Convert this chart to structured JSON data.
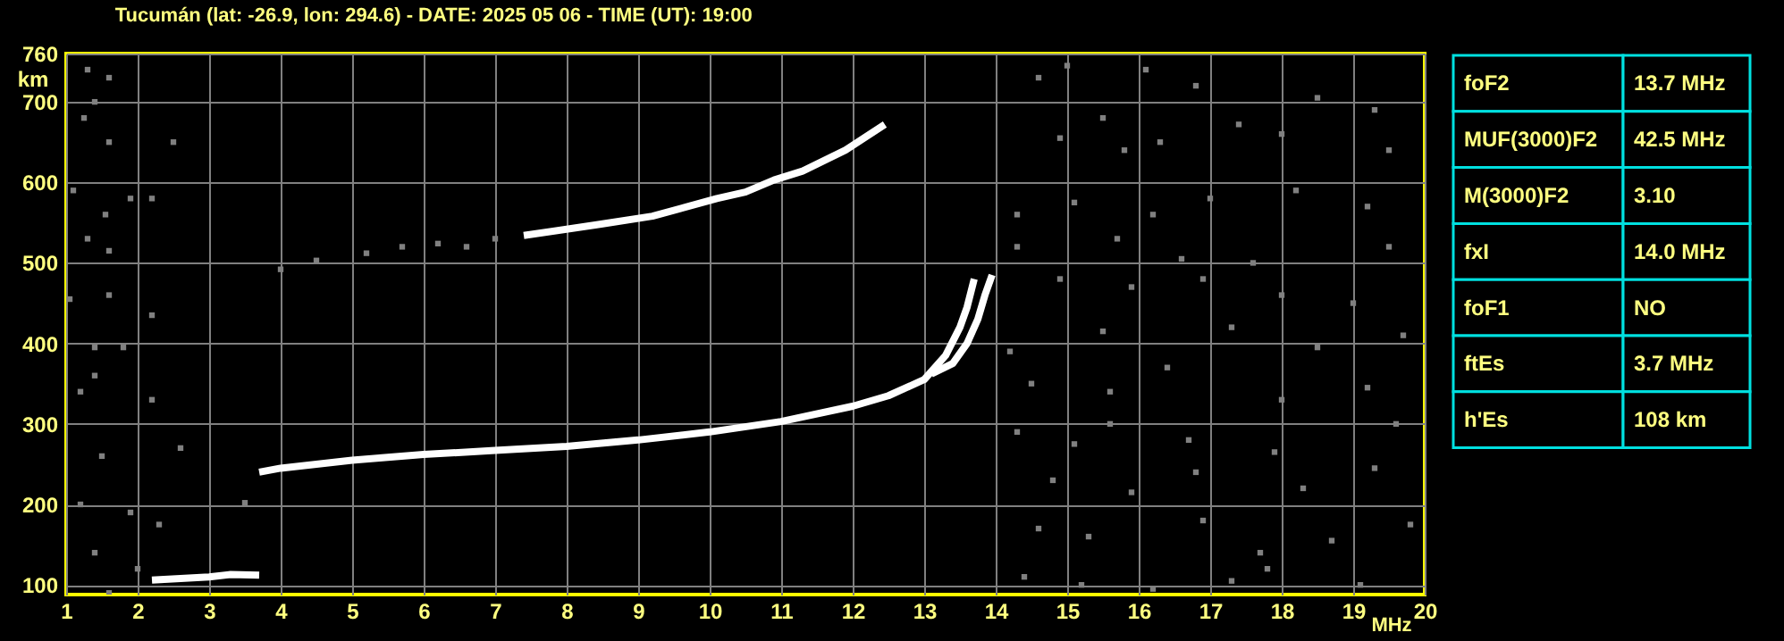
{
  "chart_data": [
    {
      "type": "scatter",
      "title": "Tucumán (lat: -26.9, lon: 294.6) - DATE: 2025 05 06 - TIME (UT): 19:00",
      "xlabel": "MHz",
      "ylabel": "km",
      "xlim": [
        1,
        20
      ],
      "xticks": [
        1,
        2,
        3,
        4,
        5,
        6,
        7,
        8,
        9,
        10,
        11,
        12,
        13,
        14,
        15,
        16,
        17,
        18,
        19,
        20
      ],
      "ylim": [
        88,
        760
      ],
      "yticks": [
        100,
        200,
        300,
        400,
        500,
        600,
        700,
        760
      ],
      "grid": true,
      "series": [
        {
          "type": "line",
          "color": "#ffffff",
          "x": [
            3.7,
            4.0,
            4.5,
            5.0,
            6.0,
            7.0,
            8.0,
            9.0,
            10.0,
            11.0,
            12.0,
            12.5,
            13.0,
            13.3,
            13.5,
            13.6,
            13.7
          ],
          "values": [
            240,
            245,
            250,
            255,
            262,
            267,
            272,
            280,
            290,
            303,
            322,
            335,
            355,
            385,
            420,
            445,
            480
          ]
        },
        {
          "type": "line",
          "color": "#ffffff",
          "x": [
            13.1,
            13.4,
            13.6,
            13.75,
            13.85,
            13.95
          ],
          "values": [
            362,
            375,
            400,
            430,
            460,
            485
          ]
        },
        {
          "type": "line",
          "color": "#ffffff",
          "x": [
            7.4,
            8.4,
            9.2,
            10.1,
            10.5,
            10.9,
            11.3,
            11.9,
            12.45
          ],
          "values": [
            534,
            547,
            558,
            580,
            588,
            603,
            614,
            640,
            672
          ]
        },
        {
          "type": "line",
          "color": "#ffffff",
          "x": [
            2.2,
            2.6,
            3.0,
            3.3,
            3.7
          ],
          "values": [
            106,
            108,
            110,
            113,
            112
          ]
        },
        {
          "type": "scatter",
          "color": "#808080",
          "marker": "square",
          "x": [
            1.3,
            1.4,
            1.6,
            1.25,
            1.6,
            2.5,
            1.1,
            1.55,
            1.9,
            2.2,
            1.3,
            1.6,
            1.05,
            1.6,
            2.2,
            1.4,
            1.8,
            1.2,
            1.4,
            2.2,
            1.5,
            2.6,
            1.2,
            1.9,
            2.3,
            1.4,
            2.0,
            1.6,
            3.5,
            4.0,
            4.5,
            5.2,
            5.7,
            6.2,
            6.6,
            7.0,
            15.0,
            16.1,
            14.6,
            16.8,
            18.5,
            19.3,
            15.5,
            17.4,
            14.9,
            16.3,
            18.0,
            19.5,
            14.3,
            15.1,
            16.2,
            17.0,
            18.2,
            19.2,
            14.3,
            15.7,
            16.6,
            17.6,
            19.5,
            14.9,
            15.9,
            16.9,
            18.0,
            19.0,
            14.2,
            15.5,
            17.3,
            18.5,
            19.7,
            14.5,
            15.6,
            16.4,
            18.0,
            19.2,
            14.3,
            15.1,
            16.7,
            17.9,
            19.6,
            14.8,
            15.9,
            16.8,
            18.3,
            19.3,
            14.6,
            15.3,
            16.9,
            17.7,
            18.7,
            19.8,
            14.4,
            15.2,
            16.2,
            17.3,
            17.8,
            19.1,
            15.6,
            15.8
          ],
          "values": [
            740,
            700,
            730,
            680,
            650,
            650,
            590,
            560,
            580,
            580,
            530,
            515,
            455,
            460,
            435,
            395,
            395,
            340,
            360,
            330,
            260,
            270,
            200,
            190,
            175,
            140,
            120,
            90,
            202,
            492,
            503,
            512,
            520,
            524,
            520,
            530,
            745,
            740,
            730,
            720,
            705,
            690,
            680,
            672,
            655,
            650,
            660,
            640,
            560,
            575,
            560,
            580,
            590,
            570,
            520,
            530,
            505,
            500,
            520,
            480,
            470,
            480,
            460,
            450,
            390,
            415,
            420,
            395,
            410,
            350,
            340,
            370,
            330,
            345,
            290,
            275,
            280,
            265,
            300,
            230,
            215,
            240,
            220,
            245,
            170,
            160,
            180,
            140,
            155,
            175,
            110,
            100,
            95,
            105,
            120,
            100,
            300,
            640
          ]
        }
      ]
    },
    {
      "type": "other",
      "categories": [
        "foF2",
        "MUF(3000)F2",
        "M(3000)F2",
        "fxI",
        "foF1",
        "ftEs",
        "h'Es"
      ],
      "value_labels": [
        "13.7 MHz",
        "42.5 MHz",
        "3.10",
        "14.0 MHz",
        "NO",
        "3.7 MHz",
        "108 km"
      ]
    }
  ]
}
